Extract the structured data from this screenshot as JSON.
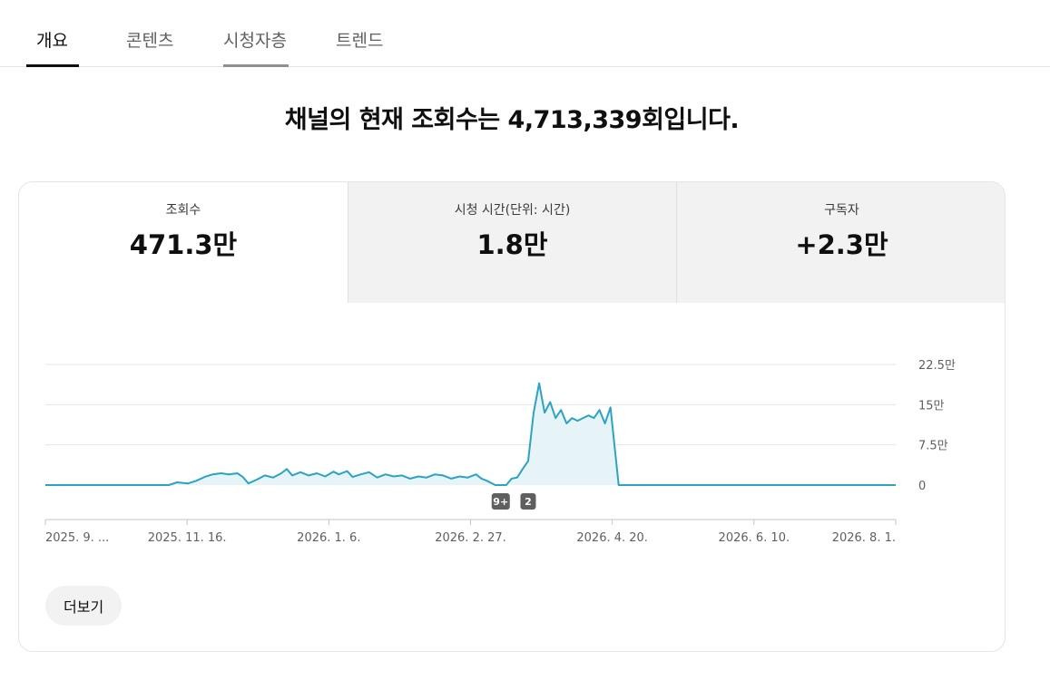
{
  "tabs": [
    {
      "label": "개요",
      "active": true
    },
    {
      "label": "콘텐츠",
      "active": false
    },
    {
      "label": "시청자층",
      "active": false
    },
    {
      "label": "트렌드",
      "active": false
    }
  ],
  "headline": "채널의 현재 조회수는 4,713,339회입니다.",
  "metrics": [
    {
      "label": "조회수",
      "value": "471.3만"
    },
    {
      "label": "시청 시간(단위: 시간)",
      "value": "1.8만"
    },
    {
      "label": "구독자",
      "value": "+2.3만"
    }
  ],
  "more_button": "더보기",
  "colors": {
    "line": "#2ba3c4",
    "fill": "#e6f4f8",
    "grid": "#e5e5e5",
    "badge": "#5f5f5f"
  },
  "chart_data": {
    "type": "area",
    "y_ticks": [
      "22.5만",
      "15만",
      "7.5만",
      "0"
    ],
    "ylim": [
      0,
      225000
    ],
    "x_ticks": [
      "2025. 9. ...",
      "2025. 11. 16.",
      "2026. 1. 6.",
      "2026. 2. 27.",
      "2026. 4. 20.",
      "2026. 6. 10.",
      "2026. 8. 1."
    ],
    "x_start": "2025-09-25",
    "x_end": "2026-08-01",
    "series": [
      {
        "points": [
          [
            "2025-09-25",
            0
          ],
          [
            "2025-11-09",
            0
          ],
          [
            "2025-11-12",
            5000
          ],
          [
            "2025-11-16",
            3000
          ],
          [
            "2025-11-19",
            8000
          ],
          [
            "2025-11-22",
            15000
          ],
          [
            "2025-11-25",
            20000
          ],
          [
            "2025-11-28",
            22000
          ],
          [
            "2025-12-01",
            20000
          ],
          [
            "2025-12-04",
            22000
          ],
          [
            "2025-12-06",
            15000
          ],
          [
            "2025-12-08",
            3000
          ],
          [
            "2025-12-11",
            10000
          ],
          [
            "2025-12-14",
            18000
          ],
          [
            "2025-12-17",
            14000
          ],
          [
            "2025-12-20",
            22000
          ],
          [
            "2025-12-22",
            30000
          ],
          [
            "2025-12-24",
            18000
          ],
          [
            "2025-12-27",
            24000
          ],
          [
            "2025-12-30",
            18000
          ],
          [
            "2026-01-02",
            22000
          ],
          [
            "2026-01-05",
            16000
          ],
          [
            "2026-01-08",
            25000
          ],
          [
            "2026-01-10",
            20000
          ],
          [
            "2026-01-13",
            26000
          ],
          [
            "2026-01-15",
            15000
          ],
          [
            "2026-01-18",
            20000
          ],
          [
            "2026-01-21",
            24000
          ],
          [
            "2026-01-24",
            14000
          ],
          [
            "2026-01-27",
            20000
          ],
          [
            "2026-01-30",
            16000
          ],
          [
            "2026-02-02",
            18000
          ],
          [
            "2026-02-05",
            12000
          ],
          [
            "2026-02-08",
            16000
          ],
          [
            "2026-02-11",
            14000
          ],
          [
            "2026-02-14",
            20000
          ],
          [
            "2026-02-17",
            18000
          ],
          [
            "2026-02-20",
            12000
          ],
          [
            "2026-02-23",
            16000
          ],
          [
            "2026-02-26",
            14000
          ],
          [
            "2026-03-01",
            20000
          ],
          [
            "2026-03-03",
            12000
          ],
          [
            "2026-03-05",
            8000
          ],
          [
            "2026-03-08",
            0
          ],
          [
            "2026-03-12",
            0
          ],
          [
            "2026-03-14",
            12000
          ],
          [
            "2026-03-16",
            14000
          ],
          [
            "2026-03-18",
            30000
          ],
          [
            "2026-03-20",
            45000
          ],
          [
            "2026-03-22",
            135000
          ],
          [
            "2026-03-24",
            190000
          ],
          [
            "2026-03-26",
            135000
          ],
          [
            "2026-03-28",
            155000
          ],
          [
            "2026-03-30",
            125000
          ],
          [
            "2026-04-01",
            140000
          ],
          [
            "2026-04-03",
            115000
          ],
          [
            "2026-04-05",
            125000
          ],
          [
            "2026-04-07",
            120000
          ],
          [
            "2026-04-09",
            125000
          ],
          [
            "2026-04-11",
            130000
          ],
          [
            "2026-04-13",
            125000
          ],
          [
            "2026-04-15",
            140000
          ],
          [
            "2026-04-17",
            115000
          ],
          [
            "2026-04-19",
            145000
          ],
          [
            "2026-04-22",
            0
          ],
          [
            "2026-08-01",
            0
          ]
        ]
      }
    ],
    "badges": [
      {
        "label": "9+",
        "date": "2026-03-10"
      },
      {
        "label": "2",
        "date": "2026-03-20"
      }
    ]
  }
}
